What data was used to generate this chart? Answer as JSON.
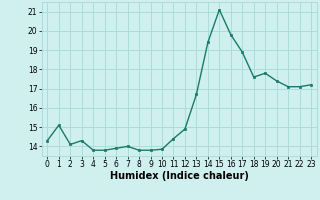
{
  "x": [
    0,
    1,
    2,
    3,
    4,
    5,
    6,
    7,
    8,
    9,
    10,
    11,
    12,
    13,
    14,
    15,
    16,
    17,
    18,
    19,
    20,
    21,
    22,
    23
  ],
  "y": [
    14.3,
    15.1,
    14.1,
    14.3,
    13.8,
    13.8,
    13.9,
    14.0,
    13.8,
    13.8,
    13.85,
    14.4,
    14.9,
    16.7,
    19.4,
    21.1,
    19.8,
    18.9,
    17.6,
    17.8,
    17.4,
    17.1,
    17.1,
    17.2
  ],
  "line_color": "#1a7a6a",
  "marker": "s",
  "marker_size": 1.8,
  "bg_color": "#d0f0f0",
  "grid_color": "#aadddd",
  "xlabel": "Humidex (Indice chaleur)",
  "xlabel_fontsize": 7,
  "ylim": [
    13.5,
    21.5
  ],
  "yticks": [
    14,
    15,
    16,
    17,
    18,
    19,
    20,
    21
  ],
  "xticks": [
    0,
    1,
    2,
    3,
    4,
    5,
    6,
    7,
    8,
    9,
    10,
    11,
    12,
    13,
    14,
    15,
    16,
    17,
    18,
    19,
    20,
    21,
    22,
    23
  ],
  "tick_fontsize": 5.5,
  "linewidth": 1.0
}
